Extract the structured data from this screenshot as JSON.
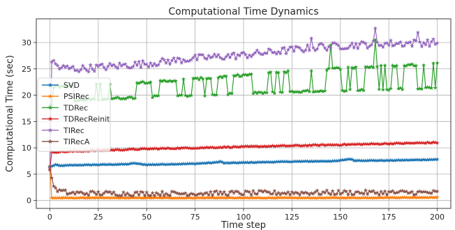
{
  "chart_data": {
    "type": "line",
    "title": "Computational Time Dynamics",
    "xlabel": "Time step",
    "ylabel": "Computational Time (sec)",
    "xlim": [
      -7,
      207
    ],
    "ylim": [
      -1.5,
      34.5
    ],
    "xticks": [
      0,
      25,
      50,
      75,
      100,
      125,
      150,
      175,
      200
    ],
    "yticks": [
      0,
      5,
      10,
      15,
      20,
      25,
      30
    ],
    "grid": true,
    "legend_position": "center-left",
    "marker": "star",
    "series": [
      {
        "name": "SVD",
        "color": "#1f77b4",
        "start": 6.3,
        "points": [
          [
            1,
            6.5
          ],
          [
            3,
            6.8
          ],
          [
            5,
            6.6
          ],
          [
            10,
            6.7
          ],
          [
            25,
            6.8
          ],
          [
            40,
            6.9
          ],
          [
            42,
            7.0
          ],
          [
            44,
            7.1
          ],
          [
            45,
            7.0
          ],
          [
            50,
            6.8
          ],
          [
            75,
            7.0
          ],
          [
            85,
            7.2
          ],
          [
            88,
            7.4
          ],
          [
            90,
            7.1
          ],
          [
            100,
            7.2
          ],
          [
            125,
            7.4
          ],
          [
            148,
            7.5
          ],
          [
            155,
            7.9
          ],
          [
            157,
            7.6
          ],
          [
            175,
            7.6
          ],
          [
            200,
            7.8
          ]
        ]
      },
      {
        "name": "PSIRec",
        "color": "#ff7f0e",
        "start": 6.0,
        "points": [
          [
            1,
            0.5
          ],
          [
            50,
            0.5
          ],
          [
            100,
            0.5
          ],
          [
            150,
            0.5
          ],
          [
            200,
            0.6
          ]
        ]
      },
      {
        "name": "TDRec",
        "color": "#2ca02c",
        "start": 18.0,
        "points": [
          [
            1,
            18.3
          ],
          [
            10,
            18.8
          ],
          [
            20,
            19.2
          ],
          [
            40,
            19.5
          ],
          [
            60,
            19.8
          ],
          [
            80,
            20.0
          ],
          [
            100,
            20.3
          ],
          [
            120,
            20.6
          ],
          [
            140,
            20.8
          ],
          [
            160,
            21.0
          ],
          [
            180,
            21.2
          ],
          [
            200,
            21.5
          ]
        ],
        "alt_points": [
          [
            1,
            21.6
          ],
          [
            20,
            21.9
          ],
          [
            40,
            22.3
          ],
          [
            60,
            22.7
          ],
          [
            80,
            23.2
          ],
          [
            100,
            23.8
          ],
          [
            120,
            24.4
          ],
          [
            140,
            24.9
          ],
          [
            160,
            25.3
          ],
          [
            180,
            25.6
          ],
          [
            200,
            26.0
          ]
        ],
        "spikes": [
          [
            145,
            29.5
          ],
          [
            168,
            30.5
          ]
        ]
      },
      {
        "name": "TDRecReinit",
        "color": "#d62728",
        "start": 5.8,
        "points": [
          [
            1,
            9.2
          ],
          [
            25,
            9.5
          ],
          [
            50,
            9.8
          ],
          [
            75,
            10.0
          ],
          [
            100,
            10.2
          ],
          [
            125,
            10.4
          ],
          [
            150,
            10.6
          ],
          [
            175,
            10.8
          ],
          [
            200,
            11.0
          ]
        ]
      },
      {
        "name": "TIRec",
        "color": "#9467bd",
        "start": 6.2,
        "points": [
          [
            1,
            26.5
          ],
          [
            5,
            25.2
          ],
          [
            15,
            25.0
          ],
          [
            30,
            25.4
          ],
          [
            50,
            26.0
          ],
          [
            75,
            27.0
          ],
          [
            100,
            27.6
          ],
          [
            125,
            28.6
          ],
          [
            150,
            29.4
          ],
          [
            175,
            29.8
          ],
          [
            200,
            30.0
          ]
        ],
        "spikes": [
          [
            135,
            30.8
          ],
          [
            140,
            29.8
          ],
          [
            168,
            32.7
          ],
          [
            190,
            31.9
          ]
        ]
      },
      {
        "name": "TIRecA",
        "color": "#8c564b",
        "start": 6.5,
        "points": [
          [
            1,
            4.2
          ],
          [
            3,
            2.0
          ],
          [
            10,
            1.4
          ],
          [
            50,
            1.3
          ],
          [
            100,
            1.4
          ],
          [
            150,
            1.5
          ],
          [
            200,
            1.5
          ]
        ]
      }
    ]
  }
}
